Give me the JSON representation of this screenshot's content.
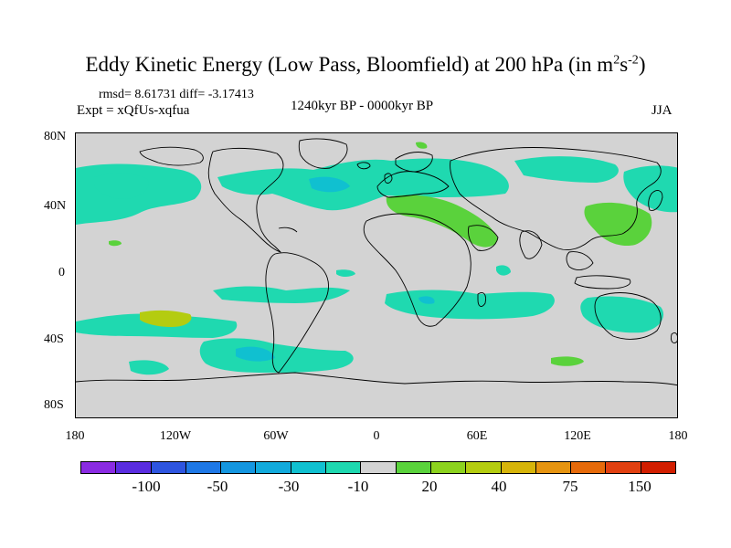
{
  "title": {
    "main": "Eddy Kinetic Energy (Low Pass, Bloomfield) at 200 hPa (in m",
    "sup1": "2",
    "mid": "s",
    "sup2": "-2",
    "end": ")"
  },
  "stats": "rmsd= 8.61731 diff= -3.17413",
  "experiment": "Expt = xQfUs-xqfua",
  "period": "1240kyr BP - 0000kyr BP",
  "season": "JJA",
  "lat_ticks": [
    "80N",
    "40N",
    "0",
    "40S",
    "80S"
  ],
  "lon_ticks": [
    "180",
    "120W",
    "60W",
    "0",
    "60E",
    "120E",
    "180"
  ],
  "colorbar": {
    "colors": [
      "#8a2be2",
      "#5a2de0",
      "#2e55e0",
      "#1e78e6",
      "#1496e0",
      "#12aadc",
      "#10c0d0",
      "#1ed8b0",
      "#d3d3d3",
      "#5ad23c",
      "#8cd21e",
      "#b4cc10",
      "#d6b40a",
      "#e69410",
      "#e66a0a",
      "#e14010",
      "#d21e00"
    ],
    "labels": [
      "-100",
      "-50",
      "-30",
      "-10",
      "20",
      "40",
      "75",
      "150"
    ]
  },
  "colors": {
    "land_background": "#d3d3d3",
    "teal": "#1fd9b0",
    "cyan": "#10c0d0",
    "green_light": "#8cd21e",
    "green": "#5ad23c",
    "yellow_green": "#b4cc10"
  }
}
